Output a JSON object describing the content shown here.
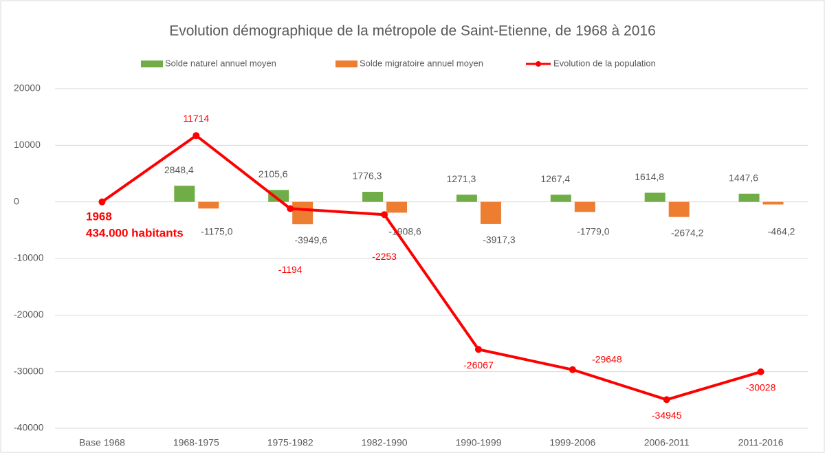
{
  "chart_data": {
    "type": "bar-line",
    "title": "Evolution démographique de la métropole de Saint-Etienne, de 1968 à 2016",
    "categories": [
      "Base 1968",
      "1968-1975",
      "1975-1982",
      "1982-1990",
      "1990-1999",
      "1999-2006",
      "2006-2011",
      "2011-2016"
    ],
    "series": [
      {
        "name": "Solde naturel annuel moyen",
        "color": "#70ad47",
        "kind": "bar",
        "values": [
          null,
          2848.4,
          2105.6,
          1776.3,
          1271.3,
          1267.4,
          1614.8,
          1447.6
        ],
        "value_labels": [
          null,
          "2848,4",
          "2105,6",
          "1776,3",
          "1271,3",
          "1267,4",
          "1614,8",
          "1447,6"
        ]
      },
      {
        "name": "Solde migratoire annuel moyen",
        "color": "#ed7d31",
        "kind": "bar",
        "values": [
          null,
          -1175.0,
          -3949.6,
          -1908.6,
          -3917.3,
          -1779.0,
          -2674.2,
          -464.2
        ],
        "value_labels": [
          null,
          "-1175,0",
          "-3949,6",
          "-1908,6",
          "-3917,3",
          "-1779,0",
          "-2674,2",
          "-464,2"
        ]
      },
      {
        "name": "Evolution de la population",
        "color": "#ff0000",
        "kind": "line",
        "values": [
          0,
          11714,
          -1194,
          -2253,
          -26067,
          -29648,
          -34945,
          -30028
        ],
        "value_labels": [
          null,
          "11714",
          "-1194",
          "-2253",
          "-26067",
          "-29648",
          "-34945",
          "-30028"
        ]
      }
    ],
    "annotations": [
      "1968",
      "434.000 habitants"
    ],
    "ylim": [
      -40000,
      20000
    ],
    "yticks": [
      -40000,
      -30000,
      -20000,
      -10000,
      0,
      10000,
      20000
    ],
    "grid": true,
    "legend": "top"
  }
}
